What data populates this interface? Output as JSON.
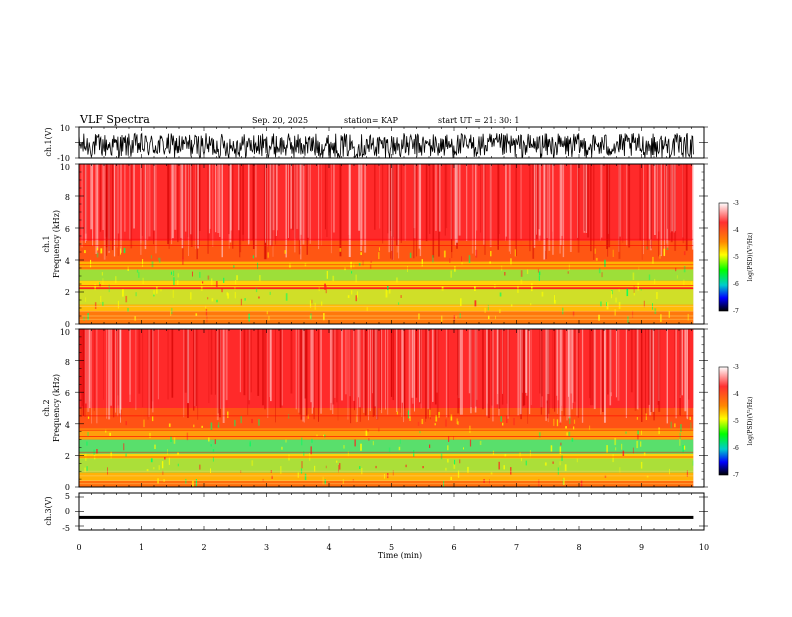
{
  "header": {
    "title": "VLF Spectra",
    "date": "Sep. 20, 2025",
    "station": "station= KAP",
    "start": "start  UT  =   21: 30: 1"
  },
  "chart_data": [
    {
      "id": "ch1-waveform",
      "type": "line",
      "ylabel": "ch.1(V)",
      "ylim": [
        -10,
        10
      ],
      "yticks": [
        "10",
        "-10"
      ],
      "xlim": [
        0,
        10
      ],
      "data_end": 9.83,
      "description_values": {
        "mean": -2,
        "amplitude": 8
      }
    },
    {
      "id": "ch1-spectrogram",
      "type": "heatmap",
      "ylabel_line1": "ch.1",
      "ylabel_line2": "Frequency  (kHz)",
      "ylim": [
        0,
        10
      ],
      "yticks": [
        "0",
        "2",
        "4",
        "6",
        "8",
        "10"
      ],
      "xlim": [
        0,
        10
      ],
      "colorbar": {
        "label": "log(PSD)(V²/Hz)",
        "range": [
          -7,
          -3
        ],
        "ticks": [
          "-3",
          "-4",
          "-5",
          "-6",
          "-7"
        ]
      }
    },
    {
      "id": "ch2-spectrogram",
      "type": "heatmap",
      "ylabel_line1": "ch.2",
      "ylabel_line2": "Frequency  (kHz)",
      "ylim": [
        0,
        10
      ],
      "yticks": [
        "0",
        "2",
        "4",
        "6",
        "8",
        "10"
      ],
      "xlim": [
        0,
        10
      ],
      "colorbar": {
        "label": "log(PSD)(V²/Hz)",
        "range": [
          -7,
          -3
        ],
        "ticks": [
          "-3",
          "-4",
          "-5",
          "-6",
          "-7"
        ]
      }
    },
    {
      "id": "ch3-waveform",
      "type": "line",
      "ylabel": "ch.3(V)",
      "ylim": [
        -5,
        5
      ],
      "yticks": [
        "5",
        "0",
        "-5"
      ],
      "xlim": [
        0,
        10
      ],
      "data_end": 9.83,
      "description_values": {
        "mean": -1.6,
        "amplitude": 0.4
      }
    }
  ],
  "xaxis": {
    "label": "Time  (min)",
    "ticks": [
      "0",
      "1",
      "2",
      "3",
      "4",
      "5",
      "6",
      "7",
      "8",
      "9",
      "10"
    ]
  },
  "colors": {
    "high": "#ff0000",
    "mid": "#ffff00",
    "low": "#00ff00",
    "lower": "#0000ff",
    "min": "#000000"
  }
}
